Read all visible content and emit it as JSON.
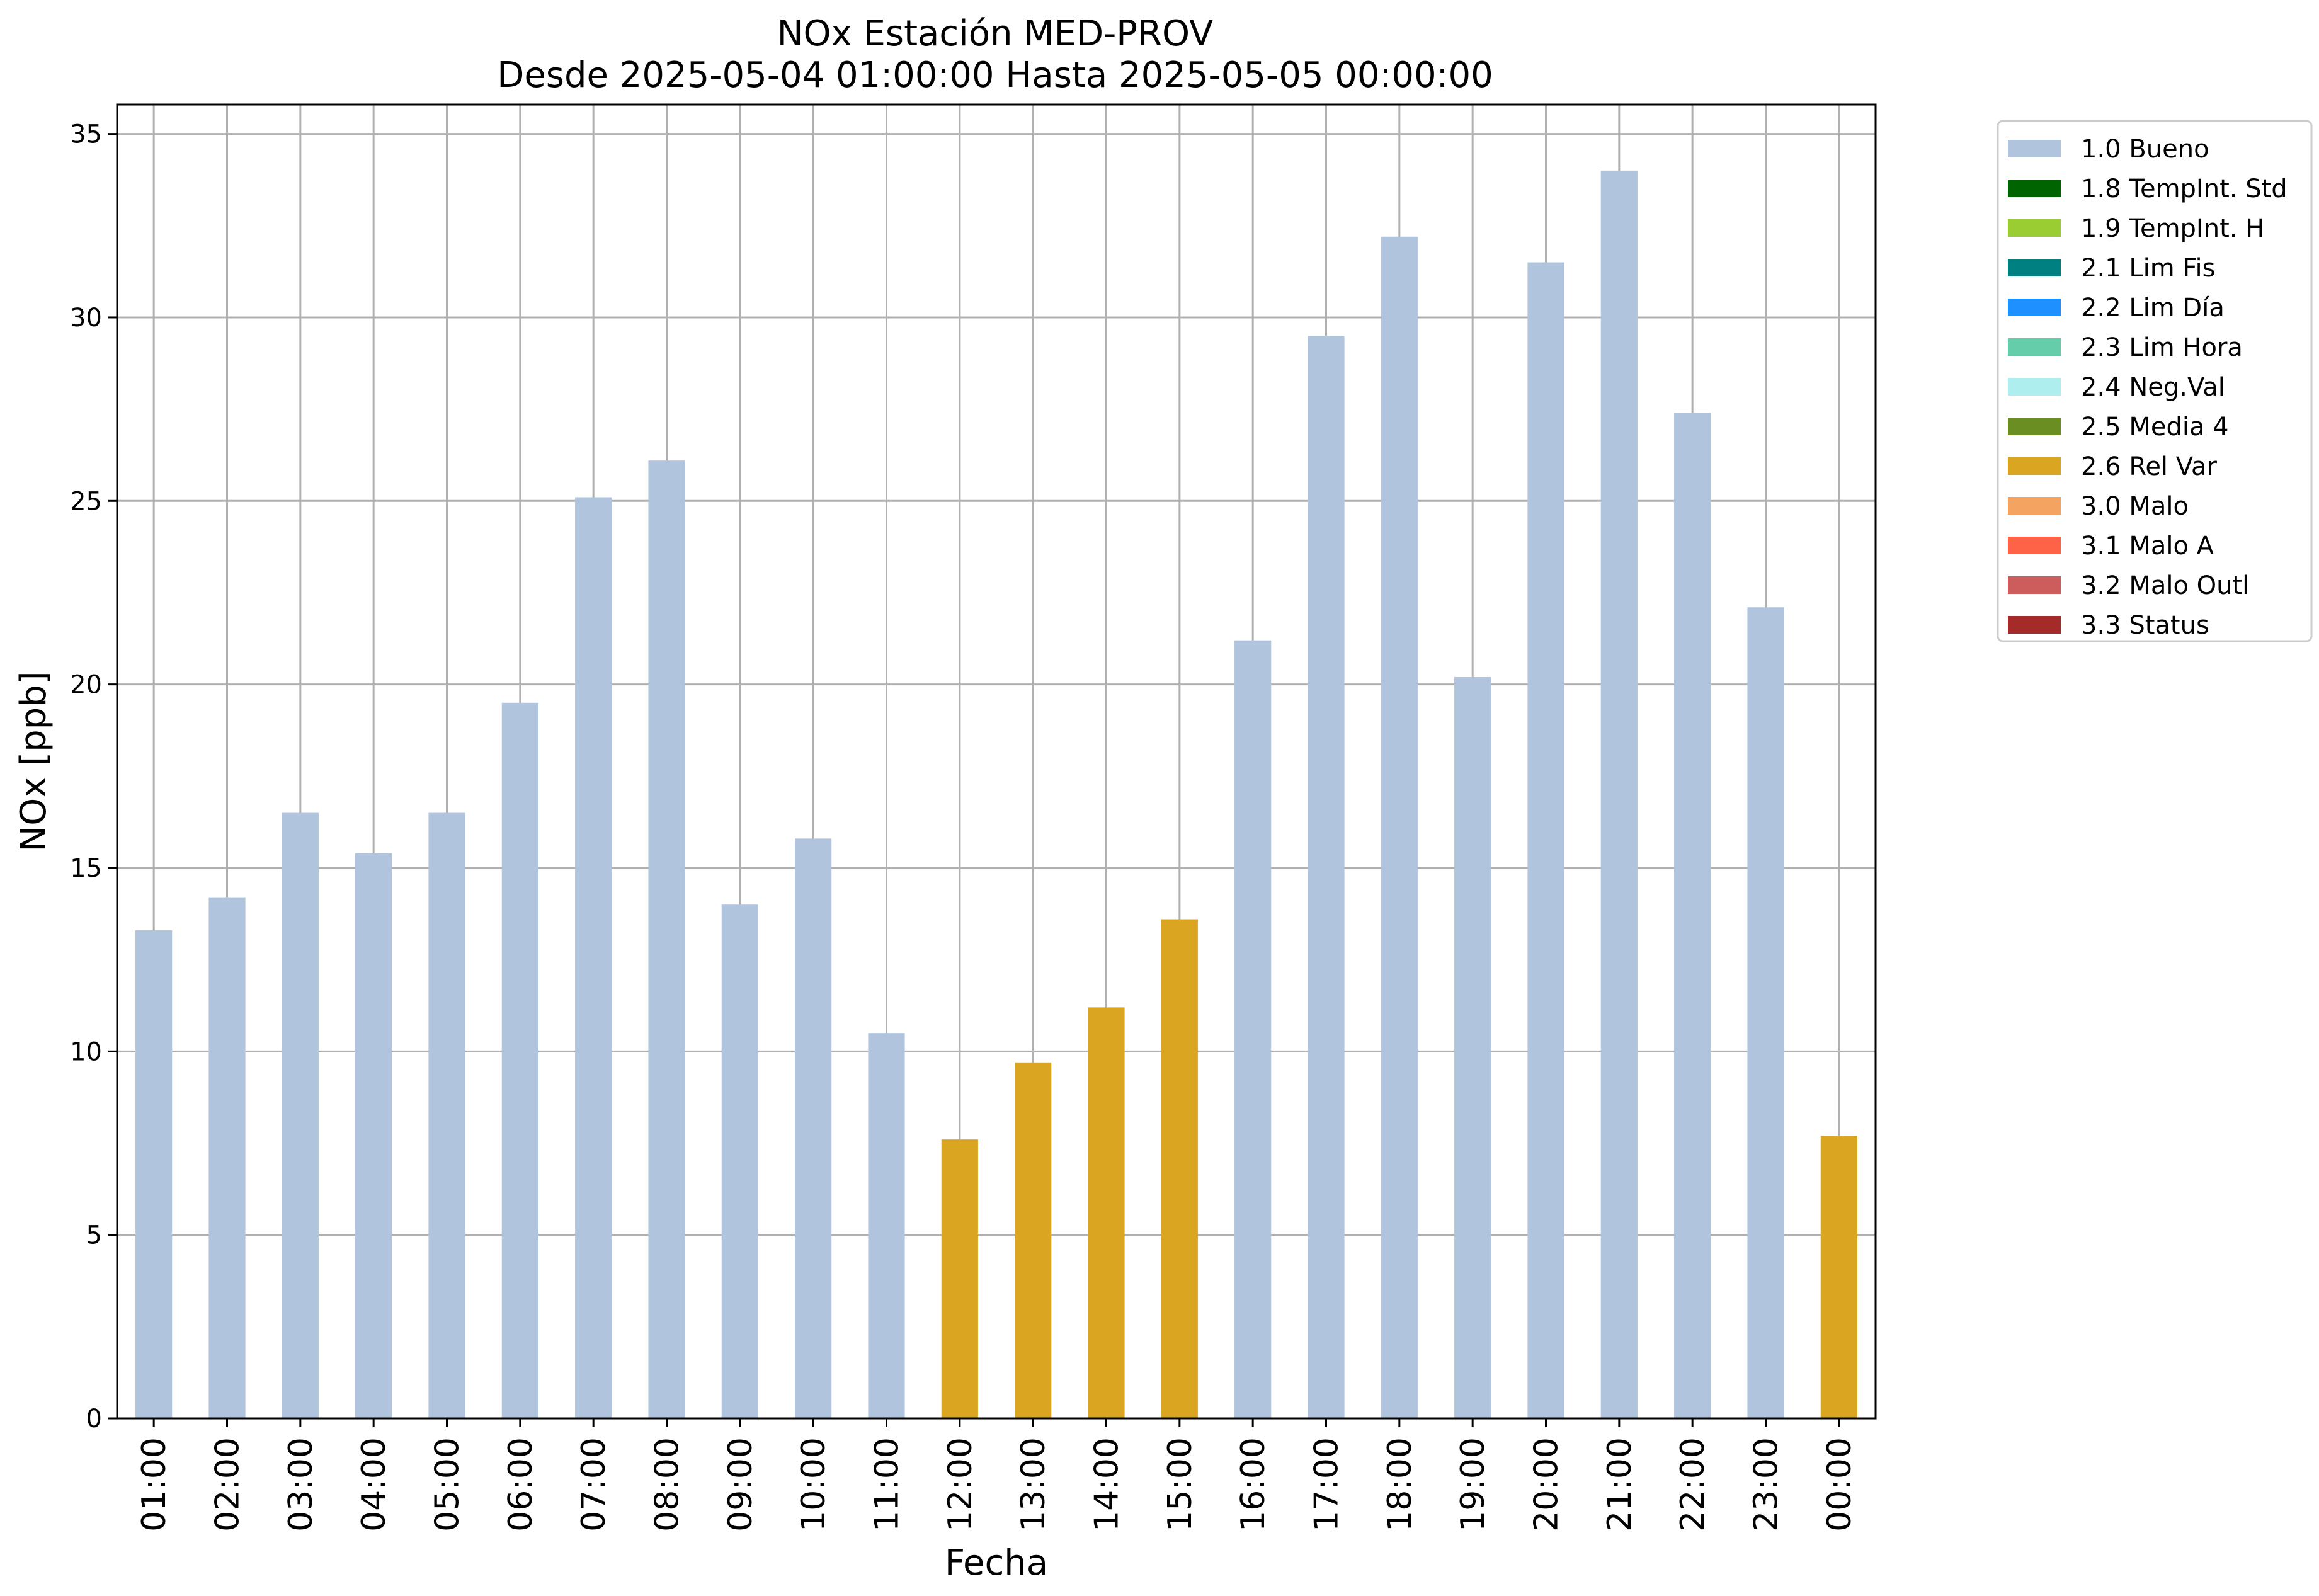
{
  "chart_data": {
    "type": "bar",
    "title": "NOx Estación MED-PROV",
    "subtitle": "Desde 2025-05-04 01:00:00 Hasta 2025-05-05 00:00:00",
    "xlabel": "Fecha",
    "ylabel": "NOx [ppb]",
    "ylim": [
      0,
      35.8
    ],
    "yticks": [
      0,
      5,
      10,
      15,
      20,
      25,
      30,
      35
    ],
    "grid": true,
    "legend_position": "outside-top-right",
    "categories": [
      "01:00",
      "02:00",
      "03:00",
      "04:00",
      "05:00",
      "06:00",
      "07:00",
      "08:00",
      "09:00",
      "10:00",
      "11:00",
      "12:00",
      "13:00",
      "14:00",
      "15:00",
      "16:00",
      "17:00",
      "18:00",
      "19:00",
      "20:00",
      "21:00",
      "22:00",
      "23:00",
      "00:00"
    ],
    "values": [
      13.3,
      14.2,
      16.5,
      15.4,
      16.5,
      19.5,
      25.1,
      26.1,
      14.0,
      15.8,
      10.5,
      7.6,
      9.7,
      11.2,
      13.6,
      21.2,
      29.5,
      32.2,
      20.2,
      31.5,
      34.0,
      27.4,
      22.1,
      7.7
    ],
    "flags": [
      "1.0 Bueno",
      "1.0 Bueno",
      "1.0 Bueno",
      "1.0 Bueno",
      "1.0 Bueno",
      "1.0 Bueno",
      "1.0 Bueno",
      "1.0 Bueno",
      "1.0 Bueno",
      "1.0 Bueno",
      "1.0 Bueno",
      "2.6 Rel Var",
      "2.6 Rel Var",
      "2.6 Rel Var",
      "2.6 Rel Var",
      "1.0 Bueno",
      "1.0 Bueno",
      "1.0 Bueno",
      "1.0 Bueno",
      "1.0 Bueno",
      "1.0 Bueno",
      "1.0 Bueno",
      "1.0 Bueno",
      "2.6 Rel Var"
    ],
    "legend": [
      {
        "label": "1.0 Bueno",
        "color": "#b0c4de"
      },
      {
        "label": "1.8 TempInt. Std",
        "color": "#006400"
      },
      {
        "label": "1.9 TempInt. H",
        "color": "#9acd32"
      },
      {
        "label": "2.1 Lim Fis",
        "color": "#008080"
      },
      {
        "label": "2.2 Lim Día",
        "color": "#1e90ff"
      },
      {
        "label": "2.3 Lim Hora",
        "color": "#66cdaa"
      },
      {
        "label": "2.4 Neg.Val",
        "color": "#afeeee"
      },
      {
        "label": "2.5 Media 4",
        "color": "#6b8e23"
      },
      {
        "label": "2.6 Rel Var",
        "color": "#daa520"
      },
      {
        "label": "3.0 Malo",
        "color": "#f4a460"
      },
      {
        "label": "3.1 Malo A",
        "color": "#ff6347"
      },
      {
        "label": "3.2 Malo Outl",
        "color": "#cd5c5c"
      },
      {
        "label": "3.3 Status",
        "color": "#a52a2a"
      }
    ]
  }
}
